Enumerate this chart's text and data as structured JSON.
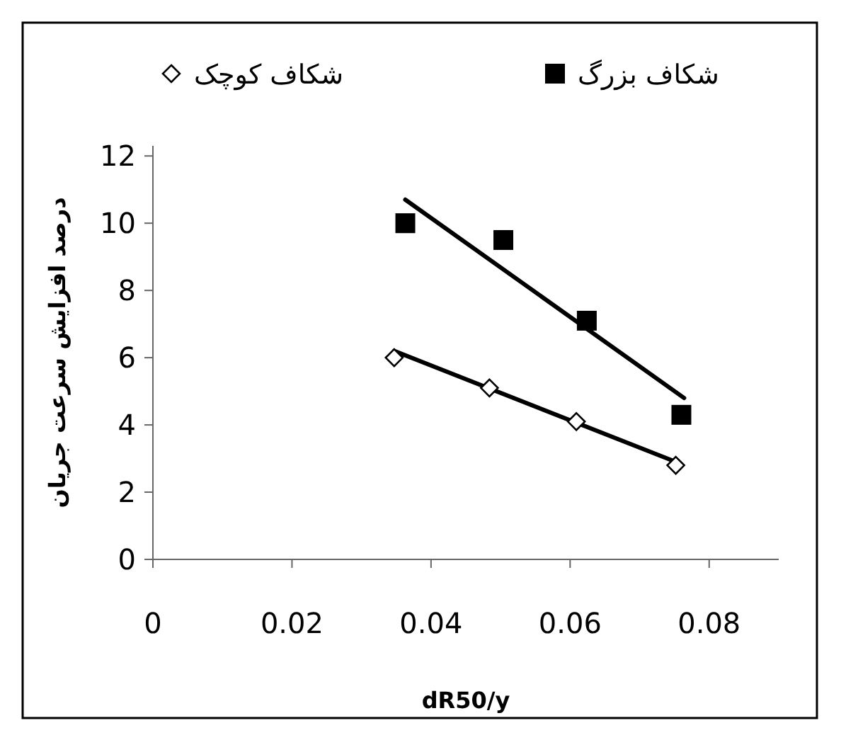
{
  "chart_data": {
    "type": "scatter",
    "xlabel": "dR50/y",
    "ylabel": "درصد افزایش سرعت جریان",
    "xlim": [
      0,
      0.09
    ],
    "xticks": [
      0,
      0.02,
      0.04,
      0.06,
      0.08
    ],
    "ylim": [
      0,
      12.3
    ],
    "yticks": [
      0,
      2,
      4,
      6,
      8,
      10,
      12
    ],
    "grid": false,
    "legend": "top",
    "series": [
      {
        "name": "شکاف کوچک",
        "marker": "diamond",
        "color": "#000000",
        "x": [
          0.0347,
          0.0484,
          0.0609,
          0.0752
        ],
        "values": [
          6.0,
          5.1,
          4.1,
          2.8
        ]
      },
      {
        "name": "شکاف بزرگ",
        "marker": "square",
        "color": "#000000",
        "x": [
          0.0363,
          0.0504,
          0.0624,
          0.076
        ],
        "values": [
          10.0,
          9.5,
          7.1,
          4.3
        ]
      },
      {
        "type": "line",
        "color": "#000000",
        "x": [
          0.0347,
          0.0752
        ],
        "values": [
          6.2,
          2.9
        ]
      },
      {
        "type": "line",
        "color": "#000000",
        "x": [
          0.0363,
          0.0764
        ],
        "values": [
          10.7,
          4.8
        ]
      }
    ]
  }
}
